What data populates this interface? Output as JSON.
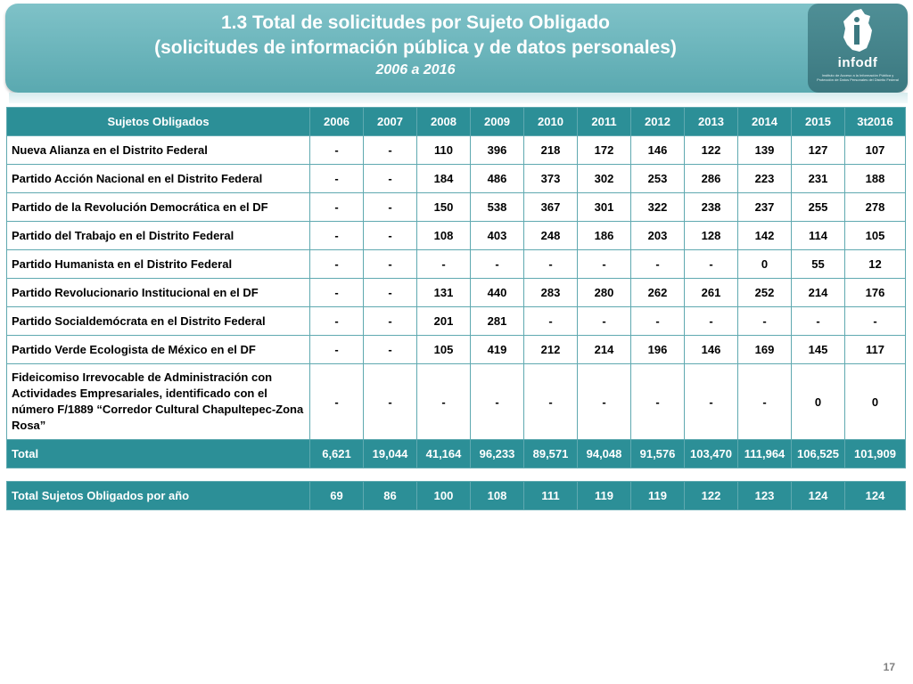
{
  "header": {
    "title_line1": "1.3 Total de solicitudes por Sujeto Obligado",
    "title_line2": "(solicitudes de información pública y de datos personales)",
    "subtitle": "2006 a 2016",
    "logo_text": "infodf",
    "logo_small": "Instituto de Acceso a la Información Pública y Protección de Datos Personales del Distrito Federal"
  },
  "table": {
    "columns": [
      "Sujetos Obligados",
      "2006",
      "2007",
      "2008",
      "2009",
      "2010",
      "2011",
      "2012",
      "2013",
      "2014",
      "2015",
      "3t2016"
    ],
    "rows": [
      {
        "name": "Nueva Alianza en el Distrito Federal",
        "values": [
          "-",
          "-",
          "110",
          "396",
          "218",
          "172",
          "146",
          "122",
          "139",
          "127",
          "107"
        ]
      },
      {
        "name": "Partido Acción Nacional en el Distrito Federal",
        "values": [
          "-",
          "-",
          "184",
          "486",
          "373",
          "302",
          "253",
          "286",
          "223",
          "231",
          "188"
        ]
      },
      {
        "name": "Partido de la Revolución Democrática en el DF",
        "values": [
          "-",
          "-",
          "150",
          "538",
          "367",
          "301",
          "322",
          "238",
          "237",
          "255",
          "278"
        ]
      },
      {
        "name": "Partido del Trabajo en el Distrito Federal",
        "values": [
          "-",
          "-",
          "108",
          "403",
          "248",
          "186",
          "203",
          "128",
          "142",
          "114",
          "105"
        ]
      },
      {
        "name": "Partido Humanista en el Distrito Federal",
        "values": [
          "-",
          "-",
          "-",
          "-",
          "-",
          "-",
          "-",
          "-",
          "0",
          "55",
          "12"
        ]
      },
      {
        "name": "Partido Revolucionario Institucional en el DF",
        "values": [
          "-",
          "-",
          "131",
          "440",
          "283",
          "280",
          "262",
          "261",
          "252",
          "214",
          "176"
        ]
      },
      {
        "name": "Partido Socialdemócrata en el Distrito Federal",
        "values": [
          "-",
          "-",
          "201",
          "281",
          "-",
          "-",
          "-",
          "-",
          "-",
          "-",
          "-"
        ]
      },
      {
        "name": "Partido Verde Ecologista de México en el DF",
        "values": [
          "-",
          "-",
          "105",
          "419",
          "212",
          "214",
          "196",
          "146",
          "169",
          "145",
          "117"
        ]
      },
      {
        "name": "Fideicomiso Irrevocable de Administración con Actividades Empresariales, identificado con el número F/1889 “Corredor Cultural Chapultepec-Zona Rosa”",
        "values": [
          "-",
          "-",
          "-",
          "-",
          "-",
          "-",
          "-",
          "-",
          "-",
          "0",
          "0"
        ]
      }
    ],
    "total": {
      "name": "Total",
      "values": [
        "6,621",
        "19,044",
        "41,164",
        "96,233",
        "89,571",
        "94,048",
        "91,576",
        "103,470",
        "111,964",
        "106,525",
        "101,909"
      ]
    }
  },
  "summary": {
    "name": "Total  Sujetos Obligados por año",
    "values": [
      "69",
      "86",
      "100",
      "108",
      "111",
      "119",
      "119",
      "122",
      "123",
      "124",
      "124"
    ]
  },
  "page_number": "17",
  "colors": {
    "header": "#6fb7bd",
    "table_header": "#2c8f97",
    "border": "#5fa9b0"
  }
}
